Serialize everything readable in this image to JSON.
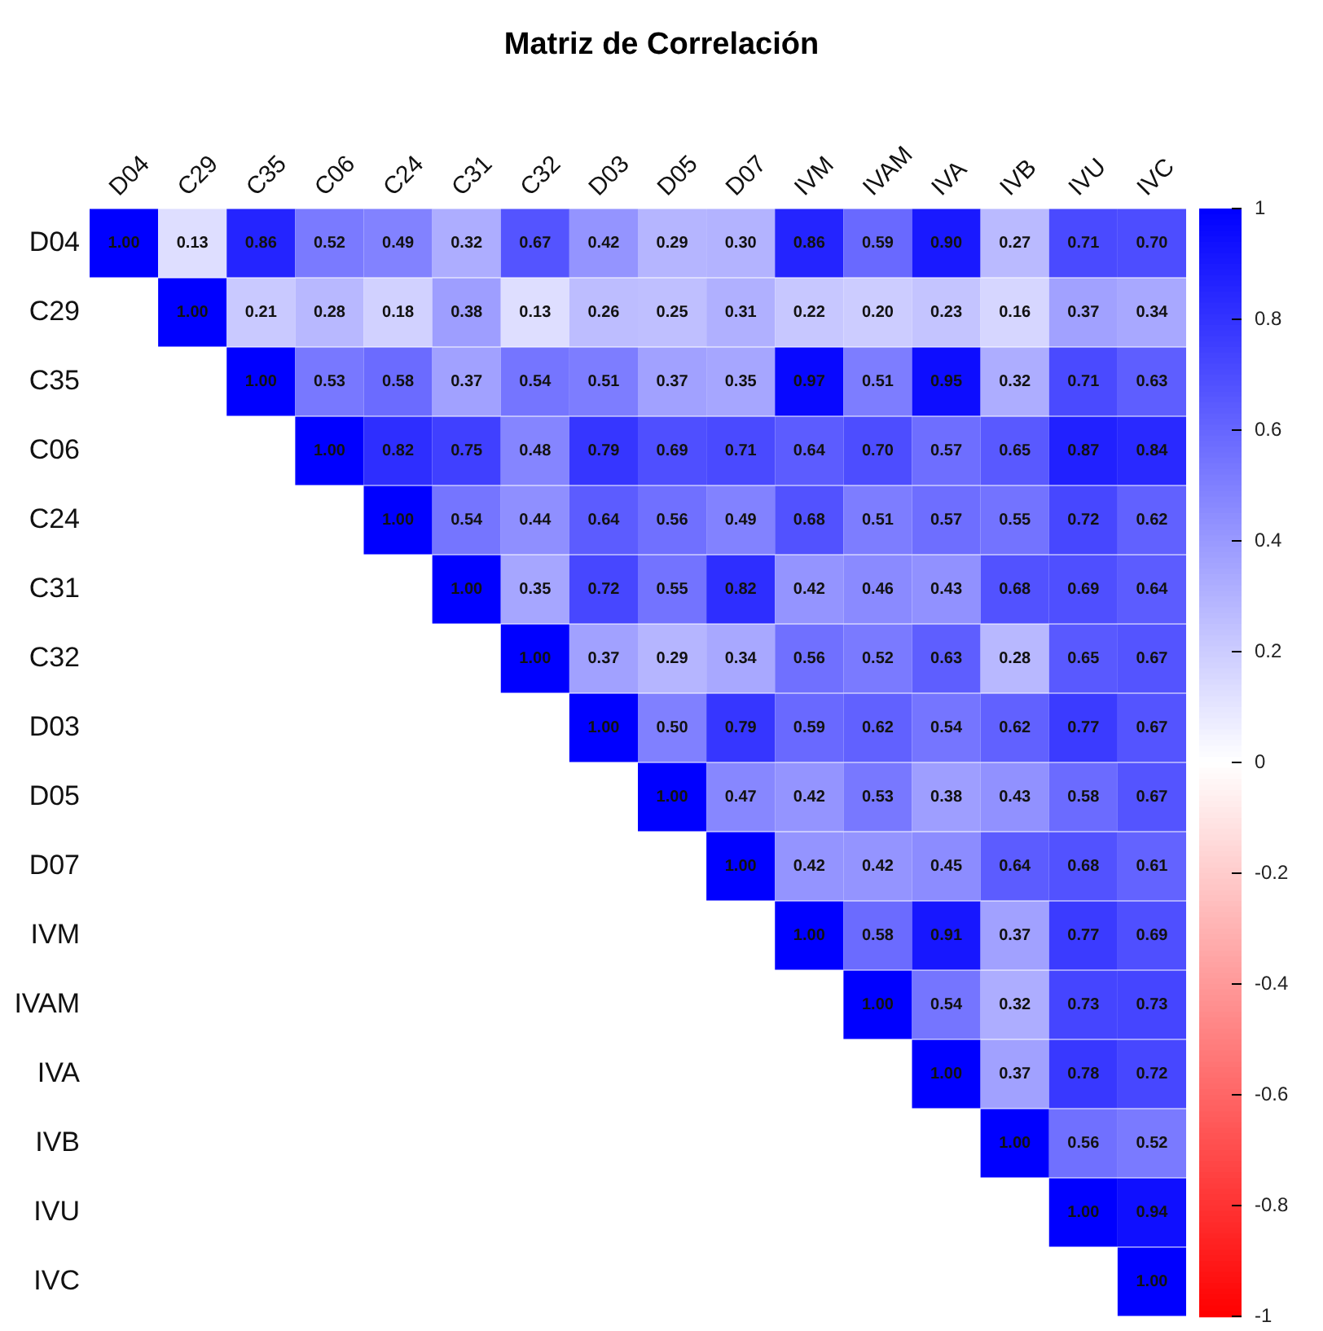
{
  "chart_data": {
    "type": "heatmap",
    "title": "Matriz de Correlación",
    "categories": [
      "D04",
      "C29",
      "C35",
      "C06",
      "C24",
      "C31",
      "C32",
      "D03",
      "D05",
      "D07",
      "IVM",
      "IVAM",
      "IVA",
      "IVB",
      "IVU",
      "IVC"
    ],
    "y_categories": [
      "D04",
      "C29",
      "C35",
      "C06",
      "C24",
      "C31",
      "C32",
      "D03",
      "D05",
      "D07",
      "IVM",
      "IVAM",
      "IVA",
      "IVB",
      "IVU",
      "IVC"
    ],
    "cells": [
      [
        1.0,
        0.13,
        0.86,
        0.52,
        0.49,
        0.32,
        0.67,
        0.42,
        0.29,
        0.3,
        0.86,
        0.59,
        0.9,
        0.27,
        0.71,
        0.7
      ],
      [
        null,
        1.0,
        0.21,
        0.28,
        0.18,
        0.38,
        0.13,
        0.26,
        0.25,
        0.31,
        0.22,
        0.2,
        0.23,
        0.16,
        0.37,
        0.34
      ],
      [
        null,
        null,
        1.0,
        0.53,
        0.58,
        0.37,
        0.54,
        0.51,
        0.37,
        0.35,
        0.97,
        0.51,
        0.95,
        0.32,
        0.71,
        0.63
      ],
      [
        null,
        null,
        null,
        1.0,
        0.82,
        0.75,
        0.48,
        0.79,
        0.69,
        0.71,
        0.64,
        0.7,
        0.57,
        0.65,
        0.87,
        0.84
      ],
      [
        null,
        null,
        null,
        null,
        1.0,
        0.54,
        0.44,
        0.64,
        0.56,
        0.49,
        0.68,
        0.51,
        0.57,
        0.55,
        0.72,
        0.62
      ],
      [
        null,
        null,
        null,
        null,
        null,
        1.0,
        0.35,
        0.72,
        0.55,
        0.82,
        0.42,
        0.46,
        0.43,
        0.68,
        0.69,
        0.64
      ],
      [
        null,
        null,
        null,
        null,
        null,
        null,
        1.0,
        0.37,
        0.29,
        0.34,
        0.56,
        0.52,
        0.63,
        0.28,
        0.65,
        0.67
      ],
      [
        null,
        null,
        null,
        null,
        null,
        null,
        null,
        1.0,
        0.5,
        0.79,
        0.59,
        0.62,
        0.54,
        0.62,
        0.77,
        0.67
      ],
      [
        null,
        null,
        null,
        null,
        null,
        null,
        null,
        null,
        1.0,
        0.47,
        0.42,
        0.53,
        0.38,
        0.43,
        0.58,
        0.67
      ],
      [
        null,
        null,
        null,
        null,
        null,
        null,
        null,
        null,
        null,
        1.0,
        0.42,
        0.42,
        0.45,
        0.64,
        0.68,
        0.61
      ],
      [
        null,
        null,
        null,
        null,
        null,
        null,
        null,
        null,
        null,
        null,
        1.0,
        0.58,
        0.91,
        0.37,
        0.77,
        0.69
      ],
      [
        null,
        null,
        null,
        null,
        null,
        null,
        null,
        null,
        null,
        null,
        null,
        1.0,
        0.54,
        0.32,
        0.73,
        0.73
      ],
      [
        null,
        null,
        null,
        null,
        null,
        null,
        null,
        null,
        null,
        null,
        null,
        null,
        1.0,
        0.37,
        0.78,
        0.72
      ],
      [
        null,
        null,
        null,
        null,
        null,
        null,
        null,
        null,
        null,
        null,
        null,
        null,
        null,
        1.0,
        0.56,
        0.52
      ],
      [
        null,
        null,
        null,
        null,
        null,
        null,
        null,
        null,
        null,
        null,
        null,
        null,
        null,
        null,
        1.0,
        0.94
      ],
      [
        null,
        null,
        null,
        null,
        null,
        null,
        null,
        null,
        null,
        null,
        null,
        null,
        null,
        null,
        null,
        1.0
      ]
    ],
    "clim": [
      -1,
      1
    ],
    "cticks": [
      {
        "value": -1,
        "label": "-1"
      },
      {
        "value": -0.8,
        "label": "-0.8"
      },
      {
        "value": -0.6,
        "label": "-0.6"
      },
      {
        "value": -0.4,
        "label": "-0.4"
      },
      {
        "value": -0.2,
        "label": "-0.2"
      },
      {
        "value": 0,
        "label": "0"
      },
      {
        "value": 0.2,
        "label": "0.2"
      },
      {
        "value": 0.4,
        "label": "0.4"
      },
      {
        "value": 0.6,
        "label": "0.6"
      },
      {
        "value": 0.8,
        "label": "0.8"
      },
      {
        "value": 1,
        "label": "1"
      }
    ],
    "data_labels": true,
    "cell_labels": [
      [
        "1.00",
        "0.13",
        "0.86",
        "0.52",
        "0.49",
        "0.32",
        "0.67",
        "0.42",
        "0.29",
        "0.30",
        "0.86",
        "0.59",
        "0.90",
        "0.27",
        "0.71",
        "0.70"
      ],
      [
        null,
        "1.00",
        "0.21",
        "0.28",
        "0.18",
        "0.38",
        "0.13",
        "0.26",
        "0.25",
        "0.31",
        "0.22",
        "0.20",
        "0.23",
        "0.16",
        "0.37",
        "0.34"
      ],
      [
        null,
        null,
        "1.00",
        "0.53",
        "0.58",
        "0.37",
        "0.54",
        "0.51",
        "0.37",
        "0.35",
        "0.97",
        "0.51",
        "0.95",
        "0.32",
        "0.71",
        "0.63"
      ],
      [
        null,
        null,
        null,
        "1.00",
        "0.82",
        "0.75",
        "0.48",
        "0.79",
        "0.69",
        "0.71",
        "0.64",
        "0.70",
        "0.57",
        "0.65",
        "0.87",
        "0.84"
      ],
      [
        null,
        null,
        null,
        null,
        "1.00",
        "0.54",
        "0.44",
        "0.64",
        "0.56",
        "0.49",
        "0.68",
        "0.51",
        "0.57",
        "0.55",
        "0.72",
        "0.62"
      ],
      [
        null,
        null,
        null,
        null,
        null,
        "1.00",
        "0.35",
        "0.72",
        "0.55",
        "0.82",
        "0.42",
        "0.46",
        "0.43",
        "0.68",
        "0.69",
        "0.64"
      ],
      [
        null,
        null,
        null,
        null,
        null,
        null,
        "1.00",
        "0.37",
        "0.29",
        "0.34",
        "0.56",
        "0.52",
        "0.63",
        "0.28",
        "0.65",
        "0.67"
      ],
      [
        null,
        null,
        null,
        null,
        null,
        null,
        null,
        "1.00",
        "0.50",
        "0.79",
        "0.59",
        "0.62",
        "0.54",
        "0.62",
        "0.77",
        "0.67"
      ],
      [
        null,
        null,
        null,
        null,
        null,
        null,
        null,
        null,
        "1.00",
        "0.47",
        "0.42",
        "0.53",
        "0.38",
        "0.43",
        "0.58",
        "0.67"
      ],
      [
        null,
        null,
        null,
        null,
        null,
        null,
        null,
        null,
        null,
        "1.00",
        "0.42",
        "0.42",
        "0.45",
        "0.64",
        "0.68",
        "0.61"
      ],
      [
        null,
        null,
        null,
        null,
        null,
        null,
        null,
        null,
        null,
        null,
        "1.00",
        "0.58",
        "0.91",
        "0.37",
        "0.77",
        "0.69"
      ],
      [
        null,
        null,
        null,
        null,
        null,
        null,
        null,
        null,
        null,
        null,
        null,
        "1.00",
        "0.54",
        "0.32",
        "0.73",
        "0.73"
      ],
      [
        null,
        null,
        null,
        null,
        null,
        null,
        null,
        null,
        null,
        null,
        null,
        null,
        "1.00",
        "0.37",
        "0.78",
        "0.72"
      ],
      [
        null,
        null,
        null,
        null,
        null,
        null,
        null,
        null,
        null,
        null,
        null,
        null,
        null,
        "1.00",
        "0.56",
        "0.52"
      ],
      [
        null,
        null,
        null,
        null,
        null,
        null,
        null,
        null,
        null,
        null,
        null,
        null,
        null,
        null,
        "1.00",
        "0.94"
      ],
      [
        null,
        null,
        null,
        null,
        null,
        null,
        null,
        null,
        null,
        null,
        null,
        null,
        null,
        null,
        null,
        "1.00"
      ]
    ]
  }
}
